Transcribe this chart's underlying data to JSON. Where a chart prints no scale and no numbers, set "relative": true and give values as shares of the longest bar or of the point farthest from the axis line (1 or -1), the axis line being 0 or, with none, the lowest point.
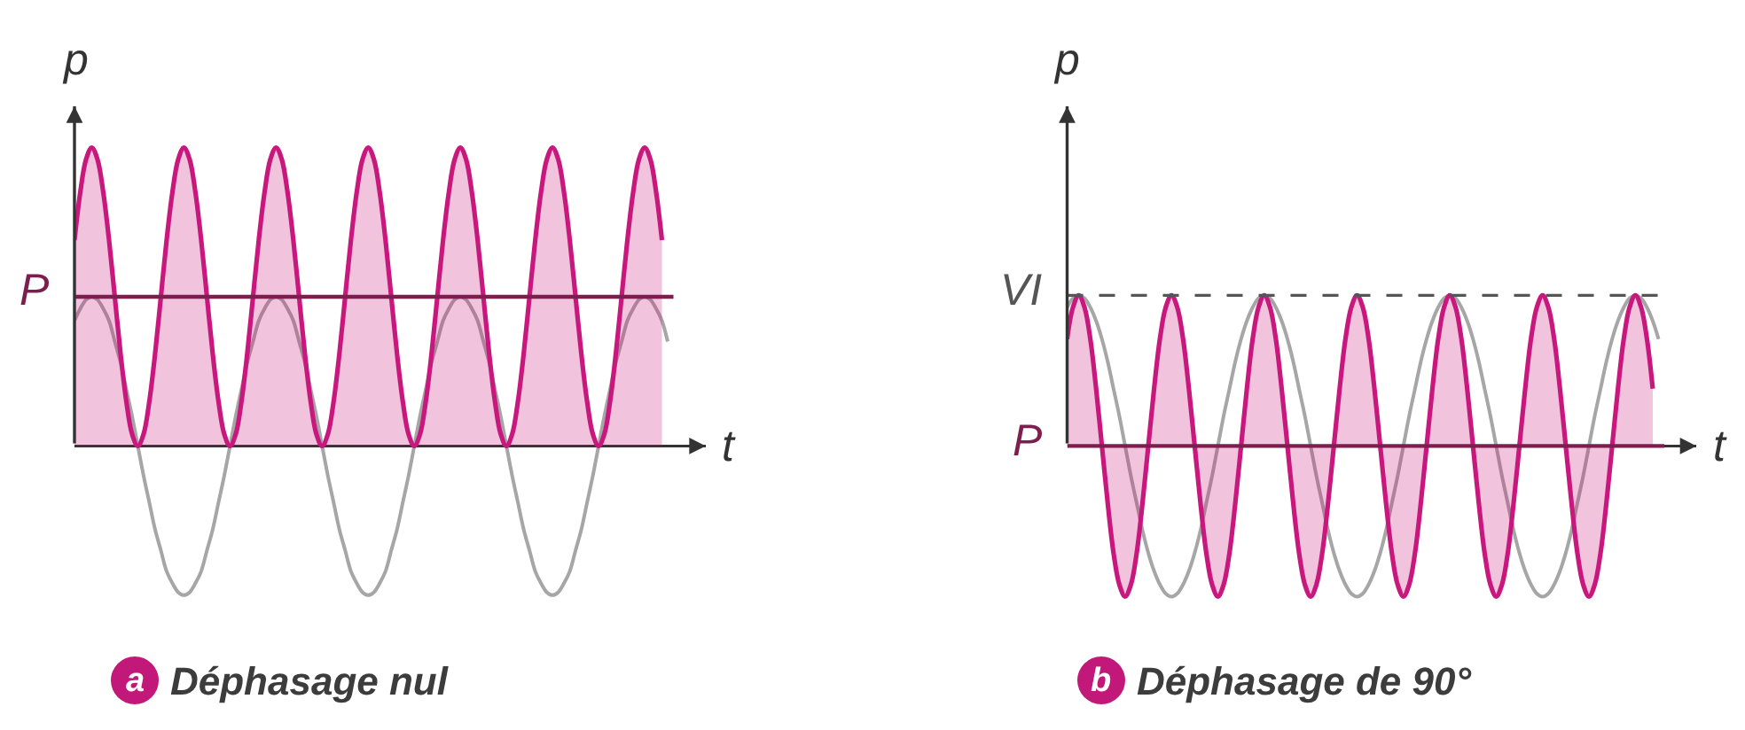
{
  "chart_data": [
    {
      "type": "line",
      "relative": true,
      "title": "Déphasage nul",
      "xlabel": "t",
      "ylabel": "p",
      "annotations": [
        "a"
      ],
      "categories": [
        null,
        null,
        null,
        null,
        null,
        null,
        null,
        null,
        null,
        null,
        null,
        null,
        null,
        null,
        null,
        null,
        null,
        null,
        null,
        null,
        null,
        null,
        null,
        null,
        null,
        null,
        null,
        null,
        null,
        null,
        null,
        null,
        null,
        null,
        null,
        null,
        null,
        null,
        null,
        null,
        null,
        null,
        null,
        null,
        null,
        null,
        null,
        null,
        null,
        null,
        null,
        null,
        null,
        null,
        null,
        null,
        null,
        null,
        null,
        null,
        null,
        null,
        null,
        null,
        null,
        null,
        null,
        null,
        null,
        null,
        null,
        null,
        null,
        null,
        null,
        null,
        null,
        null,
        null,
        null,
        null,
        null,
        null,
        null,
        null,
        null,
        null,
        null,
        null,
        null,
        null,
        null,
        null,
        null,
        null,
        null,
        null,
        null,
        null,
        null,
        null,
        null,
        null,
        null
      ],
      "series": [
        {
          "color": "#a6a6a6",
          "values": [
            0.42,
            0.46,
            0.49,
            0.5,
            0.49,
            0.46,
            0.42,
            0.35,
            0.28,
            0.19,
            0.1,
            0,
            -0.1,
            -0.19,
            -0.28,
            -0.35,
            -0.42,
            -0.46,
            -0.49,
            -0.5,
            -0.49,
            -0.46,
            -0.42,
            -0.35,
            -0.28,
            -0.19,
            -0.1,
            0,
            0.1,
            0.19,
            0.28,
            0.35,
            0.42,
            0.46,
            0.49,
            0.5,
            0.49,
            0.46,
            0.42,
            0.35,
            0.28,
            0.19,
            0.1,
            0,
            -0.1,
            -0.19,
            -0.28,
            -0.35,
            -0.42,
            -0.46,
            -0.49,
            -0.5,
            -0.49,
            -0.46,
            -0.42,
            -0.35,
            -0.28,
            -0.19,
            -0.1,
            0,
            0.1,
            0.19,
            0.28,
            0.35,
            0.42,
            0.46,
            0.49,
            0.5,
            0.49,
            0.46,
            0.42,
            0.35,
            0.28,
            0.19,
            0.1,
            0,
            -0.1,
            -0.19,
            -0.28,
            -0.35,
            -0.42,
            -0.46,
            -0.49,
            -0.5,
            -0.49,
            -0.46,
            -0.42,
            -0.35,
            -0.28,
            -0.19,
            -0.1,
            0,
            0.1,
            0.19,
            0.28,
            0.35,
            0.42,
            0.46,
            0.49,
            0.5,
            0.49,
            0.46,
            0.42,
            0.35
          ]
        },
        {
          "type": "area",
          "color": "#c8187d",
          "values": [
            0.69,
            0.85,
            0.96,
            1,
            0.96,
            0.85,
            0.69,
            0.5,
            0.31,
            0.15,
            0.04,
            0,
            0.04,
            0.15,
            0.31,
            0.5,
            0.69,
            0.85,
            0.96,
            1,
            0.96,
            0.85,
            0.69,
            0.5,
            0.31,
            0.15,
            0.04,
            0,
            0.04,
            0.15,
            0.31,
            0.5,
            0.69,
            0.85,
            0.96,
            1,
            0.96,
            0.85,
            0.69,
            0.5,
            0.31,
            0.15,
            0.04,
            0,
            0.04,
            0.15,
            0.31,
            0.5,
            0.69,
            0.85,
            0.96,
            1,
            0.96,
            0.85,
            0.69,
            0.5,
            0.31,
            0.15,
            0.04,
            0,
            0.04,
            0.15,
            0.31,
            0.5,
            0.69,
            0.85,
            0.96,
            1,
            0.96,
            0.85,
            0.69,
            0.5,
            0.31,
            0.15,
            0.04,
            0,
            0.04,
            0.15,
            0.31,
            0.5,
            0.69,
            0.85,
            0.96,
            1,
            0.96,
            0.85,
            0.69,
            0.5,
            0.31,
            0.15,
            0.04,
            0,
            0.04,
            0.15,
            0.31,
            0.5,
            0.69,
            0.85,
            0.96,
            1,
            0.96,
            0.85,
            0.69,
            null
          ]
        }
      ],
      "ref_lines": [
        {
          "axis": "y",
          "value": 0.5,
          "label": "P",
          "color": "#7c1f4e"
        }
      ]
    },
    {
      "type": "line",
      "relative": true,
      "title": "Déphasage de 90°",
      "xlabel": "t",
      "ylabel": "p",
      "annotations": [
        "b"
      ],
      "categories": [
        null,
        null,
        null,
        null,
        null,
        null,
        null,
        null,
        null,
        null,
        null,
        null,
        null,
        null,
        null,
        null,
        null,
        null,
        null,
        null,
        null,
        null,
        null,
        null,
        null,
        null,
        null,
        null,
        null,
        null,
        null,
        null,
        null,
        null,
        null,
        null,
        null,
        null,
        null,
        null,
        null,
        null,
        null,
        null,
        null,
        null,
        null,
        null,
        null,
        null,
        null,
        null,
        null,
        null,
        null,
        null,
        null,
        null,
        null,
        null,
        null,
        null,
        null,
        null,
        null,
        null,
        null,
        null,
        null,
        null,
        null,
        null,
        null,
        null,
        null,
        null,
        null,
        null,
        null,
        null,
        null,
        null,
        null,
        null,
        null,
        null,
        null,
        null,
        null,
        null,
        null,
        null,
        null,
        null,
        null,
        null,
        null,
        null,
        null,
        null,
        null,
        null,
        null
      ],
      "series": [
        {
          "color": "#a6a6a6",
          "values": [
            0.92,
            0.98,
            1,
            0.98,
            0.92,
            0.83,
            0.71,
            0.56,
            0.38,
            0.2,
            0,
            -0.2,
            -0.38,
            -0.56,
            -0.71,
            -0.83,
            -0.92,
            -0.98,
            -1,
            -0.98,
            -0.92,
            -0.83,
            -0.71,
            -0.56,
            -0.38,
            -0.2,
            0,
            0.2,
            0.38,
            0.56,
            0.71,
            0.83,
            0.92,
            0.98,
            1,
            0.98,
            0.92,
            0.83,
            0.71,
            0.56,
            0.38,
            0.2,
            0,
            -0.2,
            -0.38,
            -0.56,
            -0.71,
            -0.83,
            -0.92,
            -0.98,
            -1,
            -0.98,
            -0.92,
            -0.83,
            -0.71,
            -0.56,
            -0.38,
            -0.2,
            0,
            0.2,
            0.38,
            0.56,
            0.71,
            0.83,
            0.92,
            0.98,
            1,
            0.98,
            0.92,
            0.83,
            0.71,
            0.56,
            0.38,
            0.2,
            0,
            -0.2,
            -0.38,
            -0.56,
            -0.71,
            -0.83,
            -0.92,
            -0.98,
            -1,
            -0.98,
            -0.92,
            -0.83,
            -0.71,
            -0.56,
            -0.38,
            -0.2,
            0,
            0.2,
            0.38,
            0.56,
            0.71,
            0.83,
            0.92,
            0.98,
            1,
            0.98,
            0.92,
            0.83,
            0.71
          ]
        },
        {
          "type": "area",
          "color": "#c8187d",
          "values": [
            0.71,
            0.92,
            1,
            0.92,
            0.71,
            0.38,
            0,
            -0.38,
            -0.71,
            -0.92,
            -1,
            -0.92,
            -0.71,
            -0.38,
            0,
            0.38,
            0.71,
            0.92,
            1,
            0.92,
            0.71,
            0.38,
            0,
            -0.38,
            -0.71,
            -0.92,
            -1,
            -0.92,
            -0.71,
            -0.38,
            0,
            0.38,
            0.71,
            0.92,
            1,
            0.92,
            0.71,
            0.38,
            0,
            -0.38,
            -0.71,
            -0.92,
            -1,
            -0.92,
            -0.71,
            -0.38,
            0,
            0.38,
            0.71,
            0.92,
            1,
            0.92,
            0.71,
            0.38,
            0,
            -0.38,
            -0.71,
            -0.92,
            -1,
            -0.92,
            -0.71,
            -0.38,
            0,
            0.38,
            0.71,
            0.92,
            1,
            0.92,
            0.71,
            0.38,
            0,
            -0.38,
            -0.71,
            -0.92,
            -1,
            -0.92,
            -0.71,
            -0.38,
            0,
            0.38,
            0.71,
            0.92,
            1,
            0.92,
            0.71,
            0.38,
            0,
            -0.38,
            -0.71,
            -0.92,
            -1,
            -0.92,
            -0.71,
            -0.38,
            0,
            0.38,
            0.71,
            0.92,
            1,
            0.92,
            0.71,
            0.38,
            null
          ]
        }
      ],
      "ref_lines": [
        {
          "axis": "y",
          "value": 1,
          "label": "VI",
          "color": "#555555",
          "line_style": "dashed"
        },
        {
          "axis": "y",
          "value": 0,
          "label": "P",
          "color": "#7c1f4e"
        }
      ]
    }
  ]
}
